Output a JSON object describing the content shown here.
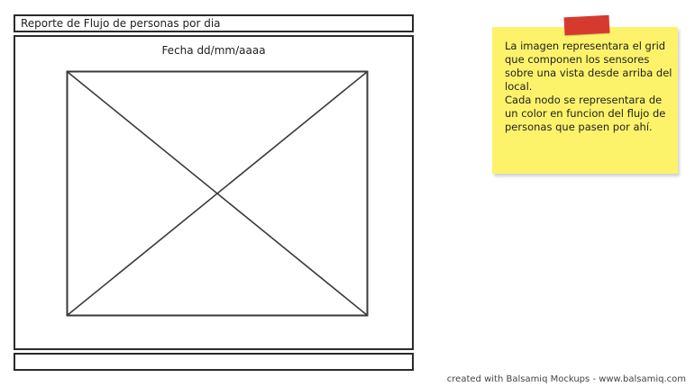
{
  "window": {
    "title": "Reporte de Flujo de personas por dia",
    "date_label": "Fecha dd/mm/aaaa"
  },
  "note": {
    "line1": "La imagen representara el grid que componen los sensores sobre una vista desde arriba del local.",
    "line2": "Cada nodo se representara de un color en funcion del flujo de personas que pasen por ahí."
  },
  "credit": "created with Balsamiq Mockups - www.balsamiq.com",
  "colors": {
    "note_bg": "#fdf36b",
    "tape": "#d63a2f",
    "border": "#2a2a2a"
  }
}
